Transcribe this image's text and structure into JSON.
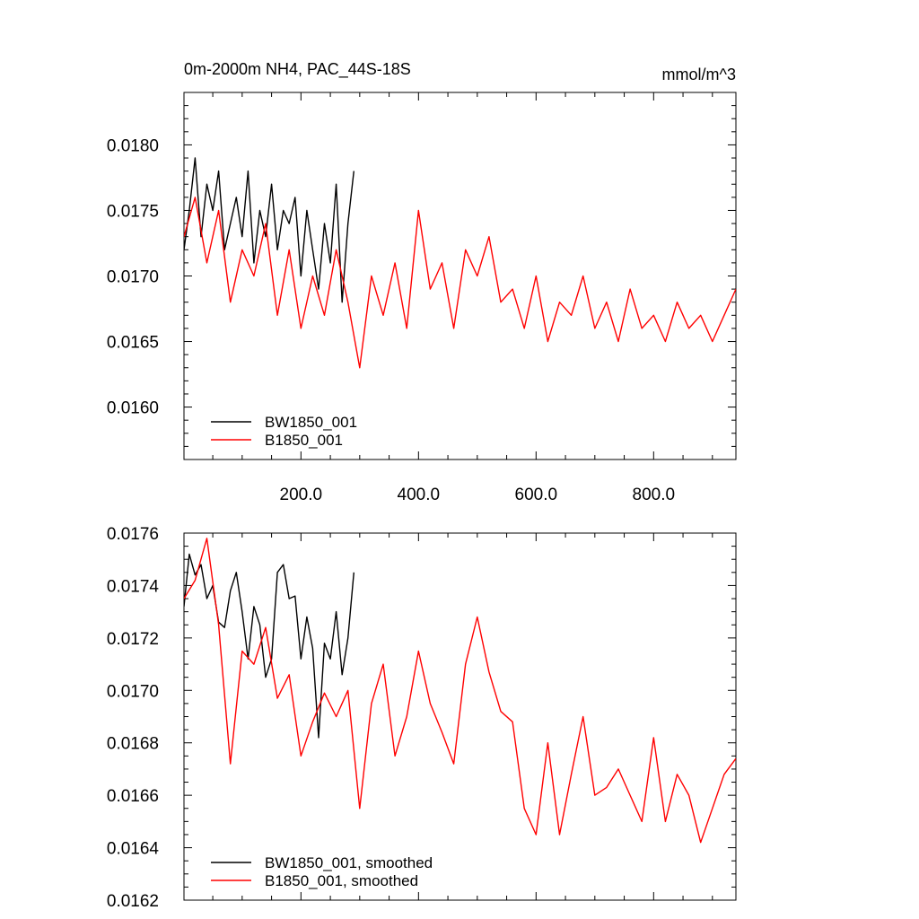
{
  "chart_data": [
    {
      "type": "line",
      "title": "0m-2000m NH4, PAC_44S-18S",
      "units": "mmol/m^3",
      "xlim": [
        1,
        940
      ],
      "ylim": [
        0.0156,
        0.0184
      ],
      "x_ticks": [
        200,
        400,
        600,
        800
      ],
      "x_tick_labels": [
        "200.0",
        "400.0",
        "600.0",
        "800.0"
      ],
      "y_ticks": [
        0.016,
        0.0165,
        0.017,
        0.0175,
        0.018
      ],
      "y_tick_labels": [
        "0.0160",
        "0.0165",
        "0.0170",
        "0.0175",
        "0.0180"
      ],
      "grid": false,
      "legend_position": "bottom-left",
      "series": [
        {
          "name": "BW1850_001",
          "color": "#000000",
          "x": [
            1,
            10,
            20,
            30,
            40,
            50,
            60,
            70,
            80,
            90,
            100,
            110,
            120,
            130,
            140,
            150,
            160,
            170,
            180,
            190,
            200,
            210,
            220,
            230,
            240,
            250,
            260,
            270,
            280,
            290
          ],
          "y": [
            0.0172,
            0.0175,
            0.0179,
            0.0173,
            0.0177,
            0.0175,
            0.0178,
            0.0172,
            0.0174,
            0.0176,
            0.0173,
            0.0178,
            0.0171,
            0.0175,
            0.0173,
            0.0177,
            0.0172,
            0.0175,
            0.0174,
            0.0176,
            0.017,
            0.0175,
            0.0172,
            0.0169,
            0.0174,
            0.0171,
            0.0177,
            0.0168,
            0.0174,
            0.0178
          ]
        },
        {
          "name": "B1850_001",
          "color": "#ff0000",
          "x": [
            1,
            20,
            40,
            60,
            80,
            100,
            120,
            140,
            160,
            180,
            200,
            220,
            240,
            260,
            280,
            300,
            320,
            340,
            360,
            380,
            400,
            420,
            440,
            460,
            480,
            500,
            520,
            540,
            560,
            580,
            600,
            620,
            640,
            660,
            680,
            700,
            720,
            740,
            760,
            780,
            800,
            820,
            840,
            860,
            880,
            900,
            920,
            940
          ],
          "y": [
            0.0173,
            0.0176,
            0.0171,
            0.0175,
            0.0168,
            0.0172,
            0.017,
            0.0174,
            0.0167,
            0.0172,
            0.0166,
            0.017,
            0.0167,
            0.0172,
            0.0168,
            0.0163,
            0.017,
            0.0167,
            0.0171,
            0.0166,
            0.0175,
            0.0169,
            0.0171,
            0.0166,
            0.0172,
            0.017,
            0.0173,
            0.0168,
            0.0169,
            0.0166,
            0.017,
            0.0165,
            0.0168,
            0.0167,
            0.017,
            0.0166,
            0.0168,
            0.0165,
            0.0169,
            0.0166,
            0.0167,
            0.0165,
            0.0168,
            0.0166,
            0.0167,
            0.0165,
            0.0167,
            0.0169
          ]
        }
      ]
    },
    {
      "type": "line",
      "title": "",
      "units": "",
      "xlim": [
        1,
        940
      ],
      "ylim": [
        0.0162,
        0.0176
      ],
      "x_ticks": [
        200,
        400,
        600,
        800
      ],
      "x_tick_labels": [],
      "y_ticks": [
        0.0162,
        0.0164,
        0.0166,
        0.0168,
        0.017,
        0.0172,
        0.0174,
        0.0176
      ],
      "y_tick_labels": [
        "0.0162",
        "0.0164",
        "0.0166",
        "0.0168",
        "0.0170",
        "0.0172",
        "0.0174",
        "0.0176"
      ],
      "grid": false,
      "legend_position": "bottom-left",
      "series": [
        {
          "name": "BW1850_001, smoothed",
          "color": "#000000",
          "x": [
            1,
            10,
            20,
            30,
            40,
            50,
            60,
            70,
            80,
            90,
            100,
            110,
            120,
            130,
            140,
            150,
            160,
            170,
            180,
            190,
            200,
            210,
            220,
            230,
            240,
            250,
            260,
            270,
            280,
            290
          ],
          "y": [
            0.01732,
            0.01752,
            0.01744,
            0.01748,
            0.01735,
            0.0174,
            0.01726,
            0.01724,
            0.01738,
            0.01745,
            0.0173,
            0.01712,
            0.01732,
            0.01725,
            0.01705,
            0.01712,
            0.01745,
            0.01748,
            0.01735,
            0.01736,
            0.01712,
            0.01728,
            0.01716,
            0.01682,
            0.01718,
            0.01712,
            0.0173,
            0.01706,
            0.0172,
            0.01745
          ]
        },
        {
          "name": "B1850_001, smoothed",
          "color": "#ff0000",
          "x": [
            1,
            20,
            40,
            60,
            80,
            100,
            120,
            140,
            160,
            180,
            200,
            220,
            240,
            260,
            280,
            300,
            320,
            340,
            360,
            380,
            400,
            420,
            440,
            460,
            480,
            500,
            520,
            540,
            560,
            580,
            600,
            620,
            640,
            660,
            680,
            700,
            720,
            740,
            760,
            780,
            800,
            820,
            840,
            860,
            880,
            900,
            920,
            940
          ],
          "y": [
            0.01735,
            0.01742,
            0.01758,
            0.01725,
            0.01672,
            0.01715,
            0.0171,
            0.01724,
            0.01697,
            0.01706,
            0.01675,
            0.01688,
            0.01699,
            0.0169,
            0.017,
            0.01655,
            0.01695,
            0.0171,
            0.01675,
            0.0169,
            0.01715,
            0.01695,
            0.01684,
            0.01672,
            0.0171,
            0.01728,
            0.01707,
            0.01692,
            0.01688,
            0.01655,
            0.01645,
            0.0168,
            0.01645,
            0.01668,
            0.0169,
            0.0166,
            0.01663,
            0.0167,
            0.0166,
            0.0165,
            0.01682,
            0.0165,
            0.01668,
            0.0166,
            0.01642,
            0.01655,
            0.01668,
            0.01674
          ]
        }
      ]
    }
  ]
}
